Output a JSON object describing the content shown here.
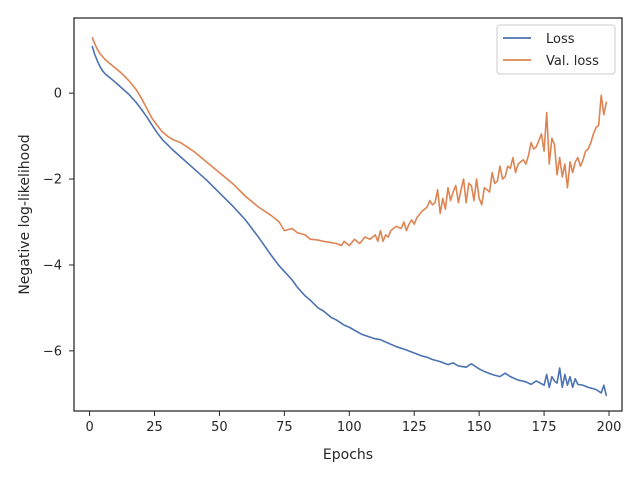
{
  "chart_data": {
    "type": "line",
    "xlabel": "Epochs",
    "ylabel": "Negative log-likelihood",
    "xlim": [
      -6,
      205
    ],
    "ylim": [
      -7.4,
      1.75
    ],
    "xticks": [
      0,
      25,
      50,
      75,
      100,
      125,
      150,
      175,
      200
    ],
    "yticks": [
      0,
      -2,
      -4,
      -6
    ],
    "ytick_labels": [
      "0",
      "−2",
      "−4",
      "−6"
    ],
    "grid": false,
    "legend": {
      "position": "top-right"
    },
    "colors": {
      "Loss": "#4c72b0",
      "Val. loss": "#dd8452"
    },
    "series": [
      {
        "name": "Loss",
        "x": [
          1,
          2,
          3,
          4,
          5,
          6,
          8,
          10,
          12,
          15,
          18,
          20,
          22,
          24,
          26,
          28,
          30,
          32,
          35,
          40,
          45,
          50,
          55,
          60,
          65,
          70,
          73,
          75,
          78,
          80,
          83,
          85,
          88,
          90,
          93,
          95,
          98,
          100,
          102,
          105,
          108,
          110,
          112,
          115,
          118,
          120,
          122,
          125,
          128,
          130,
          132,
          135,
          138,
          140,
          142,
          145,
          147,
          150,
          152,
          155,
          158,
          160,
          162,
          165,
          168,
          170,
          172,
          175,
          176,
          177,
          178,
          179,
          180,
          181,
          182,
          183,
          184,
          185,
          186,
          187,
          188,
          190,
          192,
          195,
          197,
          198,
          199
        ],
        "y": [
          1.1,
          0.9,
          0.75,
          0.62,
          0.52,
          0.45,
          0.35,
          0.25,
          0.14,
          -0.02,
          -0.22,
          -0.38,
          -0.55,
          -0.74,
          -0.92,
          -1.08,
          -1.2,
          -1.32,
          -1.48,
          -1.75,
          -2.02,
          -2.32,
          -2.62,
          -2.95,
          -3.35,
          -3.78,
          -4.02,
          -4.15,
          -4.35,
          -4.52,
          -4.72,
          -4.82,
          -5.0,
          -5.07,
          -5.22,
          -5.28,
          -5.4,
          -5.45,
          -5.52,
          -5.62,
          -5.68,
          -5.72,
          -5.74,
          -5.82,
          -5.9,
          -5.94,
          -5.98,
          -6.05,
          -6.12,
          -6.15,
          -6.2,
          -6.25,
          -6.32,
          -6.28,
          -6.35,
          -6.38,
          -6.3,
          -6.42,
          -6.48,
          -6.55,
          -6.6,
          -6.52,
          -6.6,
          -6.68,
          -6.72,
          -6.78,
          -6.7,
          -6.8,
          -6.55,
          -6.85,
          -6.6,
          -6.7,
          -6.75,
          -6.4,
          -6.85,
          -6.55,
          -6.8,
          -6.6,
          -6.85,
          -6.65,
          -6.78,
          -6.8,
          -6.85,
          -6.9,
          -6.98,
          -6.8,
          -7.05
        ]
      },
      {
        "name": "Val. loss",
        "x": [
          1,
          2,
          3,
          4,
          5,
          6,
          8,
          10,
          12,
          15,
          18,
          20,
          22,
          24,
          26,
          28,
          30,
          32,
          35,
          40,
          45,
          50,
          55,
          60,
          65,
          70,
          73,
          75,
          78,
          80,
          83,
          85,
          88,
          90,
          93,
          95,
          97,
          98,
          100,
          102,
          104,
          106,
          108,
          110,
          111,
          112,
          113,
          114,
          115,
          116,
          118,
          120,
          121,
          122,
          123,
          124,
          125,
          126,
          128,
          130,
          131,
          132,
          133,
          134,
          135,
          136,
          137,
          138,
          139,
          140,
          141,
          142,
          143,
          144,
          145,
          146,
          147,
          148,
          149,
          150,
          151,
          152,
          153,
          154,
          155,
          156,
          157,
          158,
          159,
          160,
          161,
          162,
          163,
          164,
          165,
          166,
          167,
          168,
          169,
          170,
          171,
          172,
          173,
          174,
          175,
          176,
          177,
          178,
          179,
          180,
          181,
          182,
          183,
          184,
          185,
          186,
          187,
          188,
          189,
          190,
          191,
          192,
          193,
          194,
          195,
          196,
          197,
          198,
          199
        ],
        "y": [
          1.3,
          1.15,
          1.02,
          0.92,
          0.85,
          0.78,
          0.68,
          0.58,
          0.48,
          0.3,
          0.08,
          -0.12,
          -0.35,
          -0.58,
          -0.75,
          -0.9,
          -1.0,
          -1.08,
          -1.15,
          -1.35,
          -1.6,
          -1.85,
          -2.1,
          -2.4,
          -2.65,
          -2.85,
          -3.0,
          -3.2,
          -3.15,
          -3.25,
          -3.3,
          -3.4,
          -3.42,
          -3.45,
          -3.48,
          -3.5,
          -3.55,
          -3.45,
          -3.55,
          -3.4,
          -3.5,
          -3.35,
          -3.4,
          -3.3,
          -3.45,
          -3.2,
          -3.45,
          -3.3,
          -3.35,
          -3.2,
          -3.1,
          -3.15,
          -3.0,
          -3.2,
          -3.05,
          -2.95,
          -3.05,
          -2.9,
          -2.75,
          -2.65,
          -2.5,
          -2.6,
          -2.55,
          -2.25,
          -2.8,
          -2.45,
          -2.7,
          -2.2,
          -2.5,
          -2.3,
          -2.15,
          -2.55,
          -2.25,
          -2.0,
          -2.55,
          -2.1,
          -2.15,
          -2.5,
          -2.0,
          -2.45,
          -2.6,
          -2.2,
          -2.25,
          -2.3,
          -1.85,
          -2.1,
          -2.05,
          -1.7,
          -2.0,
          -1.95,
          -1.7,
          -1.75,
          -1.5,
          -1.85,
          -1.65,
          -1.6,
          -1.55,
          -1.65,
          -1.45,
          -1.15,
          -1.3,
          -1.25,
          -1.1,
          -0.95,
          -1.35,
          -0.45,
          -1.65,
          -1.05,
          -1.2,
          -1.9,
          -1.5,
          -1.95,
          -1.65,
          -2.2,
          -1.6,
          -1.85,
          -1.6,
          -1.5,
          -1.7,
          -1.55,
          -1.35,
          -1.3,
          -1.15,
          -0.95,
          -0.8,
          -0.75,
          -0.05,
          -0.5,
          -0.2
        ]
      }
    ]
  }
}
